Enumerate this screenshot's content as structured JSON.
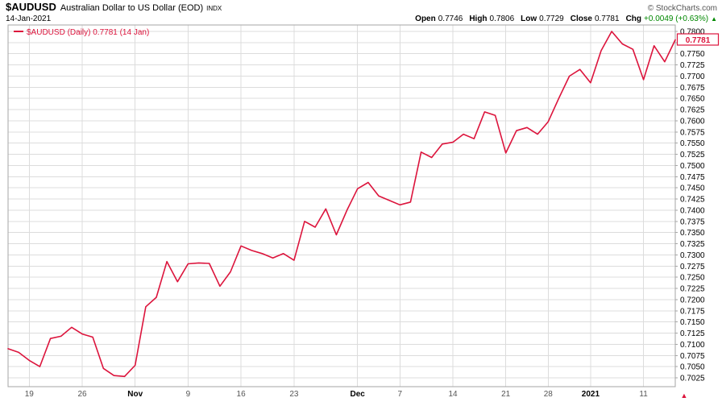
{
  "header": {
    "symbol": "$AUDUSD",
    "title": "Australian Dollar to US Dollar (EOD)",
    "exchange": "INDX",
    "date": "14-Jan-2021",
    "copyright": "© StockCharts.com",
    "quote": {
      "open_label": "Open",
      "open_value": "0.7746",
      "high_label": "High",
      "high_value": "0.7806",
      "low_label": "Low",
      "low_value": "0.7729",
      "close_label": "Close",
      "close_value": "0.7781",
      "chg_label": "Chg",
      "chg_value": "+0.0049 (+0.63%)",
      "chg_arrow": "▲"
    }
  },
  "legend": {
    "label": "$AUDUSD (Daily) 0.7781 (14 Jan)"
  },
  "last_price": "0.7781",
  "colors": {
    "line": "#dc143c",
    "grid": "#dcdcdc",
    "border": "#a6a6a6",
    "up_green": "#008800",
    "day_label": "#555555",
    "month_label": "#000000"
  },
  "chart_data": {
    "type": "line",
    "title": "$AUDUSD (Daily) — Australian Dollar to US Dollar (EOD)",
    "xlabel": "",
    "ylabel": "",
    "grid": true,
    "legend_position": "top-left",
    "ylim": [
      0.7025,
      0.78
    ],
    "ytick_interval": 0.0025,
    "dates": [
      "2020-10-15",
      "2020-10-16",
      "2020-10-19",
      "2020-10-20",
      "2020-10-21",
      "2020-10-22",
      "2020-10-23",
      "2020-10-26",
      "2020-10-27",
      "2020-10-28",
      "2020-10-29",
      "2020-10-30",
      "2020-11-02",
      "2020-11-03",
      "2020-11-04",
      "2020-11-05",
      "2020-11-06",
      "2020-11-09",
      "2020-11-10",
      "2020-11-11",
      "2020-11-12",
      "2020-11-13",
      "2020-11-16",
      "2020-11-17",
      "2020-11-18",
      "2020-11-19",
      "2020-11-20",
      "2020-11-23",
      "2020-11-24",
      "2020-11-25",
      "2020-11-26",
      "2020-11-27",
      "2020-11-30",
      "2020-12-01",
      "2020-12-02",
      "2020-12-03",
      "2020-12-04",
      "2020-12-07",
      "2020-12-08",
      "2020-12-09",
      "2020-12-10",
      "2020-12-11",
      "2020-12-14",
      "2020-12-15",
      "2020-12-16",
      "2020-12-17",
      "2020-12-18",
      "2020-12-21",
      "2020-12-22",
      "2020-12-23",
      "2020-12-24",
      "2020-12-28",
      "2020-12-29",
      "2020-12-30",
      "2020-12-31",
      "2021-01-04",
      "2021-01-05",
      "2021-01-06",
      "2021-01-07",
      "2021-01-08",
      "2021-01-11",
      "2021-01-12",
      "2021-01-13",
      "2021-01-14"
    ],
    "values": [
      0.709,
      0.7082,
      0.7064,
      0.705,
      0.7113,
      0.7118,
      0.7138,
      0.7123,
      0.7116,
      0.7046,
      0.703,
      0.7028,
      0.7053,
      0.7184,
      0.7205,
      0.7285,
      0.724,
      0.728,
      0.7282,
      0.7281,
      0.723,
      0.7262,
      0.732,
      0.731,
      0.7303,
      0.7293,
      0.7303,
      0.7288,
      0.7375,
      0.7362,
      0.7403,
      0.7345,
      0.74,
      0.7448,
      0.7462,
      0.7432,
      0.7422,
      0.7412,
      0.7418,
      0.753,
      0.7518,
      0.7548,
      0.7552,
      0.757,
      0.756,
      0.762,
      0.7612,
      0.7528,
      0.7578,
      0.7585,
      0.757,
      0.7598,
      0.765,
      0.77,
      0.7715,
      0.7685,
      0.7757,
      0.78,
      0.7772,
      0.776,
      0.7692,
      0.7768,
      0.7732,
      0.7781
    ],
    "yticks": [
      "0.7800",
      "0.7775",
      "0.7750",
      "0.7725",
      "0.7700",
      "0.7675",
      "0.7650",
      "0.7625",
      "0.7600",
      "0.7575",
      "0.7550",
      "0.7525",
      "0.7500",
      "0.7475",
      "0.7450",
      "0.7425",
      "0.7400",
      "0.7375",
      "0.7350",
      "0.7325",
      "0.7300",
      "0.7275",
      "0.7250",
      "0.7225",
      "0.7200",
      "0.7175",
      "0.7150",
      "0.7125",
      "0.7100",
      "0.7075",
      "0.7050",
      "0.7025"
    ],
    "xticks": [
      {
        "label": "19",
        "index": 2,
        "bold": false
      },
      {
        "label": "26",
        "index": 7,
        "bold": false
      },
      {
        "label": "Nov",
        "index": 12,
        "bold": true
      },
      {
        "label": "9",
        "index": 17,
        "bold": false
      },
      {
        "label": "16",
        "index": 22,
        "bold": false
      },
      {
        "label": "23",
        "index": 27,
        "bold": false
      },
      {
        "label": "Dec",
        "index": 33,
        "bold": true
      },
      {
        "label": "7",
        "index": 37,
        "bold": false
      },
      {
        "label": "14",
        "index": 42,
        "bold": false
      },
      {
        "label": "21",
        "index": 47,
        "bold": false
      },
      {
        "label": "28",
        "index": 51,
        "bold": false
      },
      {
        "label": "2021",
        "index": 55,
        "bold": true
      },
      {
        "label": "11",
        "index": 60,
        "bold": false
      }
    ]
  }
}
